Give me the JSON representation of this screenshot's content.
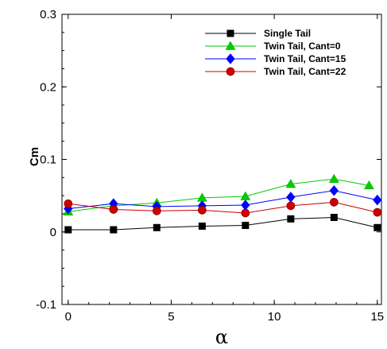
{
  "chart_data": {
    "type": "line",
    "xlabel": "α",
    "ylabel": "Cm",
    "xlim": [
      -0.3,
      15.2
    ],
    "ylim": [
      -0.1,
      0.3
    ],
    "xticks": [
      0,
      5,
      10,
      15
    ],
    "yticks": [
      -0.1,
      0,
      0.1,
      0.2,
      0.3
    ],
    "ytick_labels": [
      "-0.1",
      "0",
      "0.1",
      "0.2",
      "0.3"
    ],
    "xtick_labels": [
      "0",
      "5",
      "10",
      "15"
    ],
    "grid": false,
    "legend_position": "top-right",
    "series": [
      {
        "name": "Single Tail",
        "color": "#000000",
        "marker": "square",
        "x": [
          0,
          2.2,
          4.3,
          6.5,
          8.6,
          10.8,
          12.9,
          15.0
        ],
        "values": [
          0.003,
          0.003,
          0.006,
          0.008,
          0.009,
          0.018,
          0.02,
          0.006
        ]
      },
      {
        "name": "Twin Tail, Cant=0",
        "color": "#00cc00",
        "marker": "triangle",
        "x": [
          0,
          2.2,
          4.3,
          6.5,
          8.6,
          10.8,
          12.9,
          14.6
        ],
        "values": [
          0.028,
          0.036,
          0.04,
          0.047,
          0.049,
          0.066,
          0.073,
          0.064
        ]
      },
      {
        "name": "Twin Tail, Cant=15",
        "color": "#0000ff",
        "marker": "diamond",
        "x": [
          0,
          2.2,
          4.3,
          6.5,
          8.6,
          10.8,
          12.9,
          15.0
        ],
        "values": [
          0.032,
          0.039,
          0.035,
          0.036,
          0.037,
          0.048,
          0.057,
          0.044
        ]
      },
      {
        "name": "Twin Tail, Cant=22",
        "color": "#cc0000",
        "marker": "circle",
        "x": [
          0,
          2.2,
          4.3,
          6.5,
          8.6,
          10.8,
          12.9,
          15.0
        ],
        "values": [
          0.039,
          0.031,
          0.029,
          0.03,
          0.026,
          0.036,
          0.041,
          0.027
        ]
      }
    ]
  }
}
